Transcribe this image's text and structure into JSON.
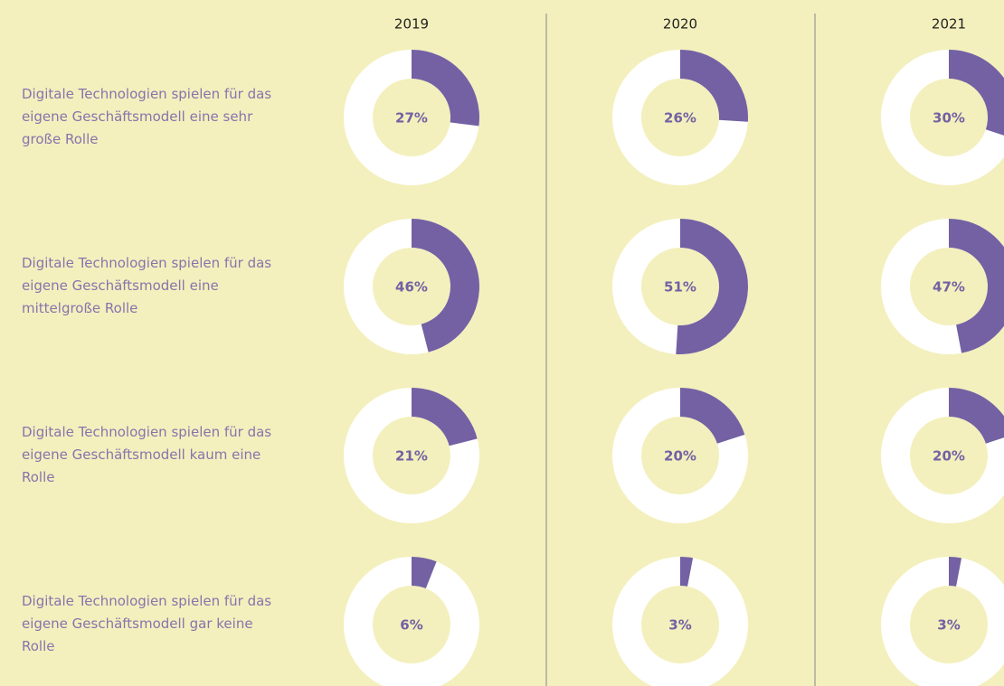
{
  "chart_data": {
    "type": "donut",
    "categories": [
      "Digitale Technologien spielen für das eigene Geschäftsmodell eine sehr große Rolle",
      "Digitale Technologien spielen für das eigene Geschäftsmodell eine mittelgroße Rolle",
      "Digitale Technologien spielen für das eigene Geschäftsmodell kaum eine Rolle",
      "Digitale Technologien spielen für das eigene Geschäftsmodell gar keine Rolle"
    ],
    "series": [
      {
        "name": "2019",
        "color": "#7361a3",
        "values": [
          27,
          46,
          21,
          6
        ],
        "value_labels": [
          "27%",
          "46%",
          "21%",
          "6%"
        ]
      },
      {
        "name": "2020",
        "color": "#7361a3",
        "values": [
          26,
          51,
          20,
          3
        ],
        "value_labels": [
          "26%",
          "51%",
          "20%",
          "3%"
        ]
      },
      {
        "name": "2021",
        "color": "#7361a3",
        "values": [
          30,
          47,
          20,
          3
        ],
        "value_labels": [
          "30%",
          "47%",
          "20%",
          "3%"
        ]
      }
    ]
  }
}
